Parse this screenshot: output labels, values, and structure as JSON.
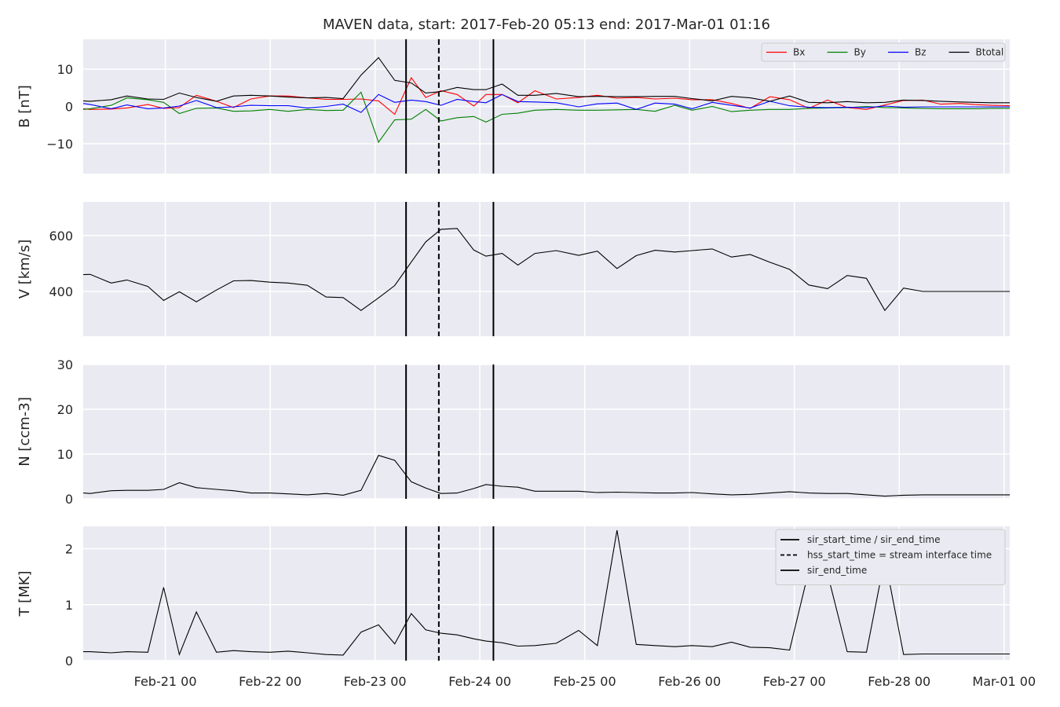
{
  "chart_data": {
    "type": "line",
    "title": "MAVEN data, start: 2017-Feb-20 05:13  end: 2017-Mar-01 01:16",
    "x_unit": "hours after 2017-Feb-20 00:00",
    "xlim": [
      5.2,
      217.3
    ],
    "x_ticks": [
      {
        "x": 24,
        "label": "Feb-21 00"
      },
      {
        "x": 48,
        "label": "Feb-22 00"
      },
      {
        "x": 72,
        "label": "Feb-23 00"
      },
      {
        "x": 96,
        "label": "Feb-24 00"
      },
      {
        "x": 120,
        "label": "Feb-25 00"
      },
      {
        "x": 144,
        "label": "Feb-26 00"
      },
      {
        "x": 168,
        "label": "Feb-27 00"
      },
      {
        "x": 192,
        "label": "Feb-28 00"
      },
      {
        "x": 216,
        "label": "Mar-01 00"
      }
    ],
    "x": [
      5.2,
      6.8,
      11.6,
      15.2,
      20.0,
      23.6,
      27.2,
      31.1,
      35.7,
      39.6,
      43.6,
      47.9,
      52.1,
      56.5,
      60.8,
      64.7,
      68.8,
      72.8,
      76.5,
      80.3,
      83.6,
      87.1,
      90.8,
      94.6,
      97.4,
      101.1,
      104.7,
      108.6,
      113.5,
      118.6,
      122.9,
      127.4,
      131.8,
      136.1,
      140.6,
      144.6,
      149.2,
      153.6,
      157.9,
      162.4,
      166.9,
      171.3,
      175.6,
      180.1,
      184.5,
      188.7,
      193.0,
      197.4,
      201.5,
      205.9,
      209.3,
      213.1,
      217.3
    ],
    "vlines": [
      {
        "x": 79.1,
        "style": "solid"
      },
      {
        "x": 86.6,
        "style": "dashed"
      },
      {
        "x": 99.1,
        "style": "solid"
      }
    ],
    "panels": [
      {
        "ylabel": "B [nT]",
        "ylim": [
          -18,
          18
        ],
        "yticks": [
          {
            "v": 10,
            "label": "10"
          },
          {
            "v": 0,
            "label": "0"
          },
          {
            "v": -10,
            "label": "−10"
          }
        ],
        "legend_position": "top-right",
        "legend_layout": "row",
        "series": [
          {
            "name": "Bx",
            "color": "#ff0000",
            "values": [
              -0.6,
              -0.8,
              -0.7,
              -0.4,
              0.5,
              -0.5,
              -0.3,
              3.0,
              1.4,
              -0.3,
              2.0,
              2.8,
              2.8,
              2.3,
              1.9,
              1.9,
              2.0,
              1.5,
              -2.1,
              7.7,
              2.4,
              4.2,
              3.2,
              0.1,
              3.2,
              3.2,
              1.0,
              4.2,
              2.0,
              2.4,
              3.0,
              2.2,
              2.4,
              2.0,
              2.2,
              1.8,
              1.8,
              0.8,
              -0.5,
              2.6,
              1.8,
              -0.5,
              1.7,
              -0.3,
              -0.8,
              0.4,
              1.6,
              1.7,
              0.6,
              0.8,
              0.5,
              0.3,
              0.2
            ]
          },
          {
            "name": "By",
            "color": "#008000",
            "values": [
              -0.8,
              -0.6,
              0.3,
              2.3,
              1.8,
              1.1,
              -1.9,
              -0.5,
              -0.4,
              -1.3,
              -1.2,
              -0.8,
              -1.3,
              -0.8,
              -1.1,
              -1.0,
              3.8,
              -9.6,
              -3.6,
              -3.4,
              -0.8,
              -3.9,
              -3.0,
              -2.7,
              -4.2,
              -2.1,
              -1.8,
              -1.0,
              -0.8,
              -1.0,
              -1.0,
              -0.9,
              -0.8,
              -1.3,
              0.3,
              -1.0,
              0.0,
              -1.4,
              -1.0,
              -0.8,
              -0.8,
              -0.5,
              -0.4,
              -0.3,
              0.0,
              -0.3,
              -0.4,
              -0.5,
              -0.6,
              -0.6,
              -0.6,
              -0.5,
              -0.5
            ]
          },
          {
            "name": "Bz",
            "color": "#0000ff",
            "values": [
              0.8,
              0.5,
              -0.6,
              0.4,
              -0.6,
              -0.4,
              0.1,
              1.6,
              -0.3,
              -0.1,
              0.3,
              0.2,
              0.2,
              -0.4,
              0.0,
              0.6,
              -1.6,
              3.2,
              1.1,
              1.7,
              1.3,
              0.3,
              1.9,
              1.3,
              1.0,
              3.2,
              1.3,
              1.2,
              1.0,
              -0.1,
              0.7,
              0.9,
              -0.8,
              0.9,
              0.6,
              -0.6,
              1.1,
              0.3,
              -0.4,
              1.4,
              0.2,
              -0.2,
              -0.3,
              -0.2,
              -0.3,
              0.1,
              -0.2,
              -0.1,
              -0.1,
              -0.1,
              -0.1,
              -0.1,
              -0.1
            ]
          },
          {
            "name": "Btotal",
            "color": "#000000",
            "values": [
              1.5,
              1.4,
              1.8,
              2.8,
              2.0,
              1.9,
              3.6,
              2.4,
              1.4,
              2.8,
              3.0,
              2.8,
              2.5,
              2.3,
              2.4,
              2.1,
              8.4,
              13.1,
              7.0,
              6.3,
              3.6,
              4.0,
              5.1,
              4.5,
              4.5,
              6.0,
              3.0,
              3.0,
              3.5,
              2.6,
              2.7,
              2.6,
              2.6,
              2.7,
              2.7,
              2.1,
              1.5,
              2.7,
              2.3,
              1.4,
              2.8,
              1.1,
              1.0,
              1.3,
              1.0,
              1.1,
              1.7,
              1.6,
              1.4,
              1.2,
              1.1,
              1.0,
              1.0
            ]
          }
        ]
      },
      {
        "ylabel": "V [km/s]",
        "ylim": [
          240,
          720
        ],
        "yticks": [
          {
            "v": 600,
            "label": "600"
          },
          {
            "v": 400,
            "label": "400"
          }
        ],
        "series": [
          {
            "name": "",
            "color": "#000000",
            "values": [
              460,
              461,
              430,
              441,
              418,
              368,
              399,
              363,
              405,
              438,
              439,
              433,
              430,
              422,
              380,
              378,
              332,
              377,
              421,
              505,
              577,
              622,
              625,
              548,
              526,
              536,
              494,
              536,
              546,
              529,
              544,
              482,
              528,
              547,
              541,
              546,
              552,
              523,
              532,
              504,
              479,
              423,
              410,
              457,
              447,
              332,
              412,
              400,
              400,
              400,
              400,
              400,
              400
            ]
          }
        ]
      },
      {
        "ylabel": "N [ccm-3]",
        "ylim": [
          0,
          30
        ],
        "yticks": [
          {
            "v": 30,
            "label": "30"
          },
          {
            "v": 20,
            "label": "20"
          },
          {
            "v": 10,
            "label": "10"
          },
          {
            "v": 0,
            "label": "0"
          }
        ],
        "series": [
          {
            "name": "",
            "color": "#000000",
            "values": [
              1.3,
              1.2,
              1.8,
              1.9,
              1.9,
              2.1,
              3.6,
              2.5,
              2.1,
              1.8,
              1.3,
              1.3,
              1.1,
              0.9,
              1.2,
              0.8,
              1.9,
              9.7,
              8.6,
              3.8,
              2.4,
              1.2,
              1.3,
              2.3,
              3.2,
              2.8,
              2.6,
              1.7,
              1.7,
              1.7,
              1.4,
              1.5,
              1.4,
              1.3,
              1.3,
              1.4,
              1.1,
              0.9,
              1.0,
              1.3,
              1.6,
              1.3,
              1.2,
              1.2,
              0.9,
              0.6,
              0.8,
              0.9,
              0.9,
              0.9,
              0.9,
              0.9,
              0.9
            ]
          }
        ]
      },
      {
        "ylabel": "T [MK]",
        "ylim": [
          0,
          2.4
        ],
        "yticks": [
          {
            "v": 2,
            "label": "2"
          },
          {
            "v": 1,
            "label": "1"
          },
          {
            "v": 0,
            "label": "0"
          }
        ],
        "legend_position": "top-right",
        "legend_layout": "column",
        "legend": [
          {
            "label": "sir_start_time / sir_end_time",
            "style": "solid"
          },
          {
            "label": "hss_start_time = stream interface time",
            "style": "dashed"
          },
          {
            "label": "sir_end_time",
            "style": "solid"
          }
        ],
        "series": [
          {
            "name": "",
            "color": "#000000",
            "values": [
              0.16,
              0.16,
              0.14,
              0.16,
              0.15,
              1.31,
              0.11,
              0.87,
              0.15,
              0.18,
              0.16,
              0.15,
              0.17,
              0.14,
              0.11,
              0.1,
              0.51,
              0.64,
              0.3,
              0.84,
              0.55,
              0.49,
              0.46,
              0.39,
              0.35,
              0.32,
              0.26,
              0.27,
              0.31,
              0.54,
              0.27,
              2.33,
              0.29,
              0.27,
              0.25,
              0.27,
              0.25,
              0.33,
              0.24,
              0.23,
              0.19,
              1.61,
              1.55,
              0.16,
              0.15,
              1.83,
              0.11,
              0.12,
              0.12,
              0.12,
              0.12,
              0.12,
              0.12
            ]
          }
        ]
      }
    ]
  }
}
